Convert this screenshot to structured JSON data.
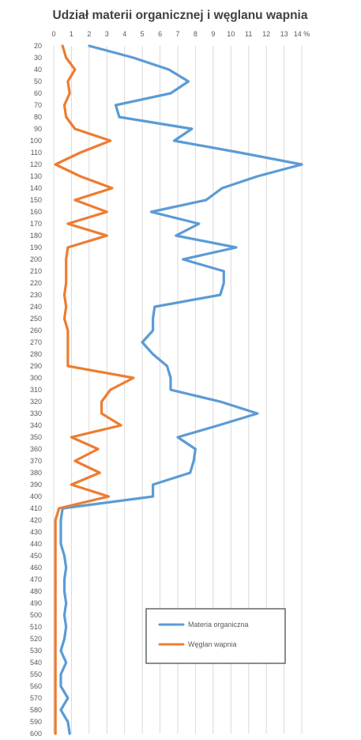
{
  "chart_data": {
    "type": "line",
    "title": "Udział materii organicznej i węglanu wapnia",
    "x_axis": {
      "range": [
        0,
        14
      ],
      "ticks": [
        "0",
        "1",
        "2",
        "3",
        "4",
        "5",
        "6",
        "7",
        "8",
        "9",
        "10",
        "11",
        "12",
        "13",
        "14 %"
      ],
      "position": "top",
      "gridlines": true
    },
    "y_axis": {
      "categories": [
        "20",
        "30",
        "40",
        "50",
        "60",
        "70",
        "80",
        "90",
        "100",
        "110",
        "120",
        "130",
        "140",
        "150",
        "160",
        "170",
        "180",
        "190",
        "200",
        "210",
        "220",
        "230",
        "240",
        "250",
        "260",
        "270",
        "280",
        "290",
        "300",
        "310",
        "320",
        "330",
        "340",
        "350",
        "360",
        "370",
        "380",
        "390",
        "400",
        "410",
        "420",
        "430",
        "440",
        "450",
        "460",
        "470",
        "480",
        "490",
        "500",
        "510",
        "520",
        "530",
        "540",
        "550",
        "560",
        "570",
        "580",
        "590",
        "600"
      ],
      "orientation": "top-to-bottom"
    },
    "series": [
      {
        "name": "Materia organiczna",
        "color": "#5B9BD5",
        "values": [
          2.0,
          4.5,
          6.5,
          7.6,
          6.6,
          3.5,
          3.7,
          7.8,
          6.8,
          10.5,
          14.0,
          11.5,
          9.5,
          8.6,
          5.5,
          8.2,
          6.9,
          10.3,
          7.3,
          9.6,
          9.6,
          9.4,
          5.7,
          5.6,
          5.6,
          5.0,
          5.6,
          6.4,
          6.6,
          6.6,
          9.4,
          11.5,
          9.3,
          7.0,
          8.0,
          7.9,
          7.7,
          5.6,
          5.6,
          0.5,
          0.4,
          0.4,
          0.4,
          0.6,
          0.7,
          0.6,
          0.6,
          0.7,
          0.6,
          0.7,
          0.6,
          0.4,
          0.7,
          0.4,
          0.4,
          0.8,
          0.4,
          0.8,
          0.9
        ]
      },
      {
        "name": "Węglan wapnia",
        "color": "#ED7D31",
        "values": [
          0.5,
          0.7,
          1.2,
          0.8,
          0.9,
          0.6,
          0.7,
          1.2,
          3.2,
          1.5,
          0.1,
          1.5,
          3.3,
          1.2,
          3.0,
          0.8,
          3.0,
          0.8,
          0.7,
          0.7,
          0.7,
          0.6,
          0.7,
          0.6,
          0.8,
          0.8,
          0.8,
          0.8,
          4.5,
          3.2,
          2.7,
          2.7,
          3.8,
          1.0,
          2.5,
          1.2,
          2.6,
          1.0,
          3.1,
          0.3,
          0.1,
          0.1,
          0.1,
          0.1,
          0.1,
          0.1,
          0.1,
          0.1,
          0.1,
          0.1,
          0.1,
          0.1,
          0.1,
          0.1,
          0.1,
          0.1,
          0.1,
          0.1,
          0.1
        ]
      }
    ],
    "legend": {
      "placement": "bottom-right",
      "entries": [
        "Materia organiczna",
        "Węglan wapnia"
      ]
    }
  },
  "colors": {
    "grid": "#D9D9D9",
    "text": "#595959",
    "title": "#404040"
  }
}
